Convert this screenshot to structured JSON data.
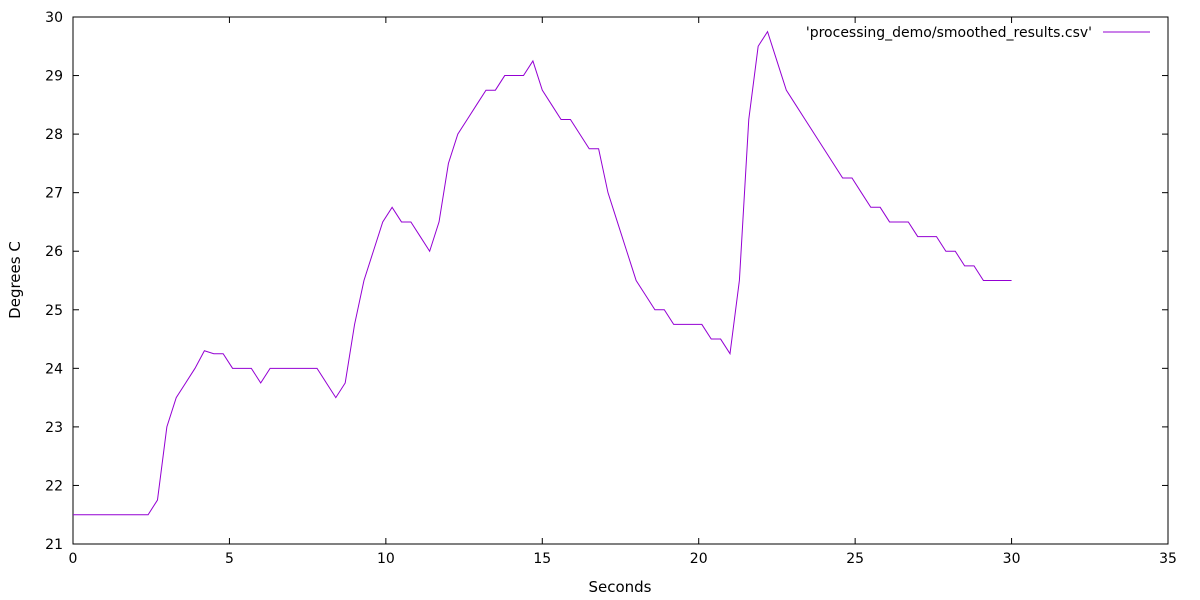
{
  "chart_data": {
    "type": "line",
    "title": "",
    "xlabel": "Seconds",
    "ylabel": "Degrees C",
    "xlim": [
      0,
      35
    ],
    "ylim": [
      21,
      30
    ],
    "xticks": [
      0,
      5,
      10,
      15,
      20,
      25,
      30,
      35
    ],
    "yticks": [
      21,
      22,
      23,
      24,
      25,
      26,
      27,
      28,
      29,
      30
    ],
    "xtick_labels": [
      "0",
      "5",
      "10",
      "15",
      "20",
      "25",
      "30",
      "35"
    ],
    "ytick_labels": [
      "21",
      "22",
      "23",
      "24",
      "25",
      "26",
      "27",
      "28",
      "29",
      "30"
    ],
    "grid": false,
    "legend_position": "top-right",
    "series": [
      {
        "name": "'processing_demo/smoothed_results.csv'",
        "color": "#9400d3",
        "x": [
          0,
          0.3,
          0.6,
          0.9,
          1.2,
          1.5,
          1.8,
          2.1,
          2.4,
          2.7,
          3.0,
          3.3,
          3.6,
          3.9,
          4.2,
          4.5,
          4.8,
          5.1,
          5.4,
          5.7,
          6.0,
          6.3,
          6.6,
          6.9,
          7.2,
          7.5,
          7.8,
          8.1,
          8.4,
          8.7,
          9.0,
          9.3,
          9.6,
          9.9,
          10.2,
          10.5,
          10.8,
          11.1,
          11.4,
          11.7,
          12.0,
          12.3,
          12.6,
          12.9,
          13.2,
          13.5,
          13.8,
          14.1,
          14.4,
          14.7,
          15.0,
          15.3,
          15.6,
          15.9,
          16.2,
          16.5,
          16.8,
          17.1,
          17.4,
          17.7,
          18.0,
          18.3,
          18.6,
          18.9,
          19.2,
          19.5,
          19.8,
          20.1,
          20.4,
          20.7,
          21.0,
          21.3,
          21.6,
          21.9,
          22.2,
          22.5,
          22.8,
          23.1,
          23.4,
          23.7,
          24.0,
          24.3,
          24.6,
          24.9,
          25.2,
          25.5,
          25.8,
          26.1,
          26.4,
          26.7,
          27.0,
          27.3,
          27.6,
          27.9,
          28.2,
          28.5,
          28.8,
          29.1,
          29.4,
          29.7,
          30.0
        ],
        "y": [
          21.5,
          21.5,
          21.5,
          21.5,
          21.5,
          21.5,
          21.5,
          21.5,
          21.5,
          21.75,
          23.0,
          23.5,
          23.75,
          24.0,
          24.3,
          24.25,
          24.25,
          24.0,
          24.0,
          24.0,
          23.75,
          24.0,
          24.0,
          24.0,
          24.0,
          24.0,
          24.0,
          23.75,
          23.5,
          23.75,
          24.75,
          25.5,
          26.0,
          26.5,
          26.75,
          26.5,
          26.5,
          26.25,
          26.0,
          26.5,
          27.5,
          28.0,
          28.25,
          28.5,
          28.75,
          28.75,
          29.0,
          29.0,
          29.0,
          29.25,
          28.75,
          28.5,
          28.25,
          28.25,
          28.0,
          27.75,
          27.75,
          27.0,
          26.5,
          26.0,
          25.5,
          25.25,
          25.0,
          25.0,
          24.75,
          24.75,
          24.75,
          24.75,
          24.5,
          24.5,
          24.25,
          25.5,
          28.25,
          29.5,
          29.75,
          29.25,
          28.75,
          28.5,
          28.25,
          28.0,
          27.75,
          27.5,
          27.25,
          27.25,
          27.0,
          26.75,
          26.75,
          26.5,
          26.5,
          26.5,
          26.25,
          26.25,
          26.25,
          26.0,
          26.0,
          25.75,
          25.75,
          25.5,
          25.5,
          25.5,
          25.5
        ]
      }
    ]
  }
}
